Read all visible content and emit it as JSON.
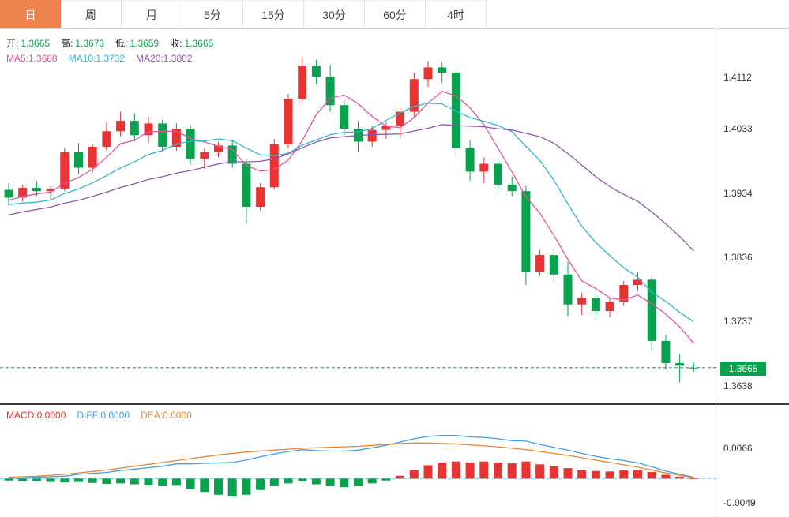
{
  "tabs": {
    "items": [
      {
        "label": "日",
        "selected": true
      },
      {
        "label": "周",
        "selected": false
      },
      {
        "label": "月",
        "selected": false
      },
      {
        "label": "5分",
        "selected": false
      },
      {
        "label": "15分",
        "selected": false
      },
      {
        "label": "30分",
        "selected": false
      },
      {
        "label": "60分",
        "selected": false
      },
      {
        "label": "4时",
        "selected": false
      }
    ]
  },
  "legend": {
    "ohlc": {
      "open_label": "开:",
      "open_value": "1.3665",
      "high_label": "高:",
      "high_value": "1.3673",
      "low_label": "低:",
      "low_value": "1.3659",
      "close_label": "收:",
      "close_value": "1.3665"
    },
    "ma": {
      "ma5_label": "MA5:",
      "ma5_value": "1.3688",
      "ma10_label": "MA10:",
      "ma10_value": "1.3732",
      "ma20_label": "MA20:",
      "ma20_value": "1.3802"
    },
    "macd": {
      "macd_label": "MACD:",
      "macd_value": "0.0000",
      "diff_label": "DIFF:",
      "diff_value": "0.0000",
      "dea_label": "DEA:",
      "dea_value": "0.0000"
    }
  },
  "price_axis": {
    "ticks": [
      "1.4112",
      "1.4033",
      "1.3934",
      "1.3836",
      "1.3737",
      "1.3638"
    ],
    "last_price": "1.3665"
  },
  "macd_axis": {
    "ticks": [
      "0.0066",
      "-0.0049"
    ]
  },
  "colors": {
    "up": "#e83333",
    "down": "#08a14e",
    "ma5": "#e8509e",
    "ma10": "#33b5d1",
    "ma20": "#9055b0",
    "diff": "#3f9fe0",
    "dea": "#e8862e",
    "macd_legend": "#e03030",
    "tab_selected_bg": "#ef8350",
    "badge_bg": "#08a14e",
    "zero_line": "#6ecadd",
    "axis_text": "#333333"
  },
  "chart_data": {
    "type": "candlestick",
    "main": {
      "ylim": [
        1.3615,
        1.4175
      ],
      "axis_ticks": [
        1.4112,
        1.4033,
        1.3934,
        1.3836,
        1.3737,
        1.3638
      ],
      "current_price": 1.3665,
      "ma_periods": [
        5,
        10,
        20
      ],
      "warmup_closes": [
        1.3845,
        1.3852,
        1.386,
        1.3868,
        1.3875,
        1.3882,
        1.3888,
        1.3895,
        1.39,
        1.3906,
        1.3912,
        1.3918,
        1.3922,
        1.3908,
        1.3895,
        1.3902,
        1.391,
        1.3918,
        1.3925,
        1.393
      ],
      "ohlc": [
        [
          1.3938,
          1.3948,
          1.3914,
          1.3926
        ],
        [
          1.3926,
          1.3946,
          1.392,
          1.3941
        ],
        [
          1.3941,
          1.3952,
          1.3928,
          1.3936
        ],
        [
          1.3936,
          1.3944,
          1.3922,
          1.394
        ],
        [
          1.394,
          1.4002,
          1.3936,
          1.3996
        ],
        [
          1.3996,
          1.401,
          1.3962,
          1.3972
        ],
        [
          1.3972,
          1.4008,
          1.3965,
          1.4004
        ],
        [
          1.4004,
          1.4042,
          1.3998,
          1.4028
        ],
        [
          1.4028,
          1.4058,
          1.402,
          1.4044
        ],
        [
          1.4044,
          1.4056,
          1.4012,
          1.4022
        ],
        [
          1.4022,
          1.405,
          1.401,
          1.404
        ],
        [
          1.404,
          1.4046,
          1.3996,
          1.4004
        ],
        [
          1.4004,
          1.404,
          1.3998,
          1.4032
        ],
        [
          1.4032,
          1.4038,
          1.3976,
          1.3986
        ],
        [
          1.3986,
          1.4002,
          1.397,
          1.3996
        ],
        [
          1.3996,
          1.4012,
          1.3988,
          1.4006
        ],
        [
          1.4006,
          1.4014,
          1.3972,
          1.3978
        ],
        [
          1.3978,
          1.3986,
          1.3886,
          1.3912
        ],
        [
          1.3912,
          1.3948,
          1.3906,
          1.3942
        ],
        [
          1.3942,
          1.4016,
          1.3938,
          1.4008
        ],
        [
          1.4008,
          1.4085,
          1.4002,
          1.4078
        ],
        [
          1.4078,
          1.4142,
          1.4072,
          1.4128
        ],
        [
          1.4128,
          1.4138,
          1.41,
          1.4112
        ],
        [
          1.4112,
          1.413,
          1.4058,
          1.4068
        ],
        [
          1.4068,
          1.4076,
          1.4022,
          1.4032
        ],
        [
          1.4032,
          1.4044,
          1.3996,
          1.4012
        ],
        [
          1.4012,
          1.4036,
          1.4004,
          1.403
        ],
        [
          1.403,
          1.4042,
          1.4016,
          1.4036
        ],
        [
          1.4036,
          1.4064,
          1.402,
          1.4058
        ],
        [
          1.4058,
          1.4118,
          1.405,
          1.4108
        ],
        [
          1.4108,
          1.4136,
          1.4096,
          1.4126
        ],
        [
          1.4126,
          1.4134,
          1.4102,
          1.4118
        ],
        [
          1.4118,
          1.4124,
          1.3988,
          1.4002
        ],
        [
          1.4002,
          1.4014,
          1.3952,
          1.3966
        ],
        [
          1.3966,
          1.3988,
          1.3948,
          1.3978
        ],
        [
          1.3978,
          1.3984,
          1.3936,
          1.3946
        ],
        [
          1.3946,
          1.3958,
          1.3928,
          1.3936
        ],
        [
          1.3936,
          1.3944,
          1.3792,
          1.3812
        ],
        [
          1.3812,
          1.3846,
          1.3806,
          1.3838
        ],
        [
          1.3838,
          1.3848,
          1.3796,
          1.3808
        ],
        [
          1.3808,
          1.3828,
          1.3744,
          1.3762
        ],
        [
          1.3762,
          1.378,
          1.3746,
          1.3772
        ],
        [
          1.3772,
          1.3778,
          1.3738,
          1.3752
        ],
        [
          1.3752,
          1.3772,
          1.3742,
          1.3766
        ],
        [
          1.3766,
          1.3798,
          1.376,
          1.3792
        ],
        [
          1.3792,
          1.3812,
          1.3782,
          1.38
        ],
        [
          1.38,
          1.3806,
          1.3692,
          1.3706
        ],
        [
          1.3706,
          1.3716,
          1.3662,
          1.3672
        ],
        [
          1.3672,
          1.3686,
          1.3642,
          1.3668
        ],
        [
          1.3665,
          1.3673,
          1.3659,
          1.3665
        ]
      ]
    },
    "macd": {
      "type": "bar+line",
      "ylim": [
        -0.0076,
        0.0147
      ],
      "axis_ticks": [
        0.0066,
        -0.0049
      ],
      "hist": [
        -0.0004,
        -0.0006,
        -0.0005,
        -0.0007,
        -0.0008,
        -0.0007,
        -0.0009,
        -0.0011,
        -0.001,
        -0.0012,
        -0.0014,
        -0.0016,
        -0.0015,
        -0.0022,
        -0.0028,
        -0.0034,
        -0.0038,
        -0.0034,
        -0.0024,
        -0.0016,
        -0.001,
        -0.0006,
        -0.0012,
        -0.0016,
        -0.0018,
        -0.0016,
        -0.001,
        -0.0004,
        0.0006,
        0.0018,
        0.0028,
        0.0034,
        0.0036,
        0.0034,
        0.0036,
        0.0034,
        0.0032,
        0.0036,
        0.003,
        0.0026,
        0.0022,
        0.0018,
        0.0016,
        0.0015,
        0.0017,
        0.0018,
        0.0014,
        0.0008,
        0.0004,
        0.0001
      ],
      "diff": [
        0.0001,
        0.0001,
        0.0003,
        0.0004,
        0.0005,
        0.0009,
        0.0011,
        0.0013,
        0.0017,
        0.002,
        0.0023,
        0.0026,
        0.0031,
        0.0031,
        0.0032,
        0.0033,
        0.0034,
        0.0039,
        0.0046,
        0.0052,
        0.0057,
        0.0061,
        0.0059,
        0.0058,
        0.0058,
        0.006,
        0.0065,
        0.007,
        0.0077,
        0.0084,
        0.0089,
        0.0091,
        0.0091,
        0.0088,
        0.0087,
        0.0084,
        0.008,
        0.0079,
        0.0072,
        0.0066,
        0.006,
        0.0053,
        0.0047,
        0.0042,
        0.0038,
        0.0033,
        0.0025,
        0.0016,
        0.0009,
        0.0003
      ],
      "dea": [
        0.0003,
        0.0004,
        0.0005,
        0.0007,
        0.0009,
        0.0012,
        0.0015,
        0.0018,
        0.0022,
        0.0026,
        0.003,
        0.0034,
        0.0038,
        0.0042,
        0.0046,
        0.005,
        0.0053,
        0.0056,
        0.0058,
        0.006,
        0.0062,
        0.0064,
        0.0065,
        0.0066,
        0.0067,
        0.0068,
        0.007,
        0.0072,
        0.0074,
        0.0075,
        0.0075,
        0.0074,
        0.0073,
        0.0071,
        0.0069,
        0.0067,
        0.0064,
        0.0061,
        0.0057,
        0.0053,
        0.0049,
        0.0044,
        0.0039,
        0.0034,
        0.0029,
        0.0024,
        0.0018,
        0.0012,
        0.0007,
        0.0002
      ]
    }
  }
}
